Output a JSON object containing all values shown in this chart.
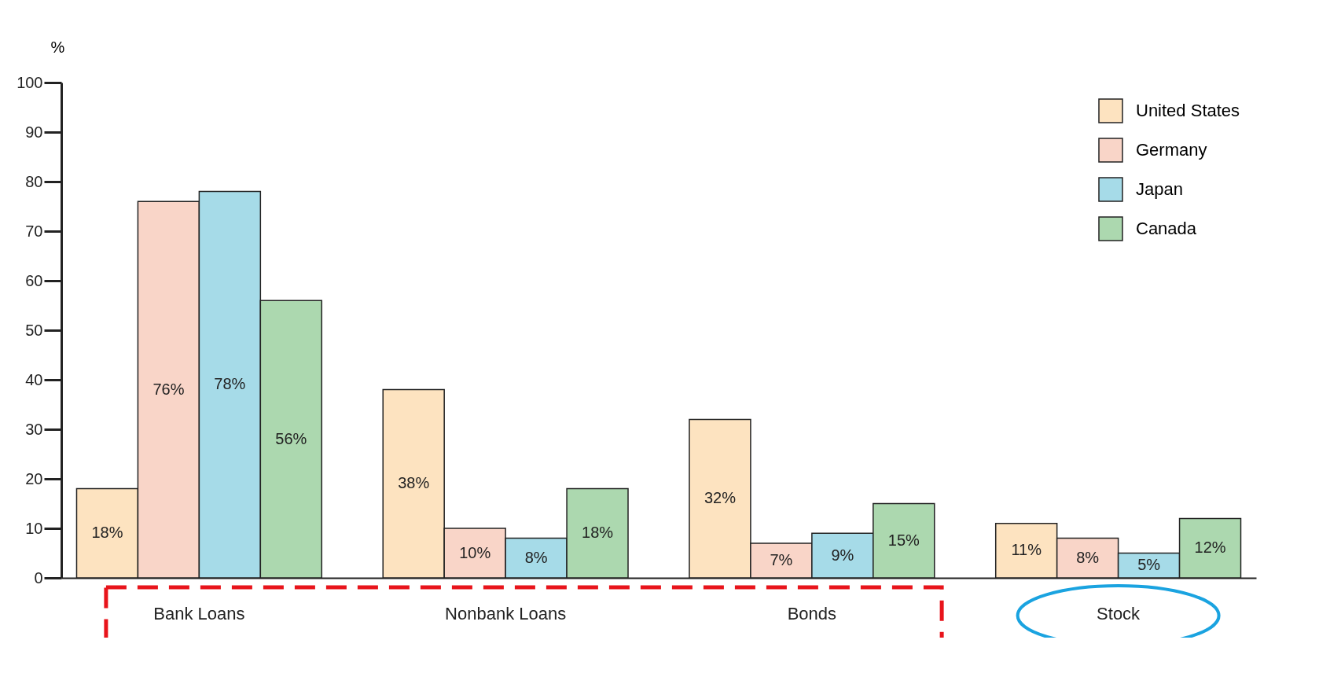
{
  "chart_data": {
    "type": "bar",
    "ylabel": "%",
    "categories": [
      "Bank Loans",
      "Nonbank Loans",
      "Bonds",
      "Stock"
    ],
    "series": [
      {
        "name": "United States",
        "color": "#fde3c0",
        "values": [
          18,
          38,
          32,
          11
        ],
        "value_labels": [
          "18%",
          "38%",
          "32%",
          "11%"
        ]
      },
      {
        "name": "Germany",
        "color": "#f9d5c8",
        "values": [
          76,
          10,
          7,
          8
        ],
        "value_labels": [
          "76%",
          "10%",
          "7%",
          "8%"
        ]
      },
      {
        "name": "Japan",
        "color": "#a6dbe8",
        "values": [
          78,
          8,
          9,
          5
        ],
        "value_labels": [
          "78%",
          "8%",
          "9%",
          "5%"
        ]
      },
      {
        "name": "Canada",
        "color": "#acd8af",
        "values": [
          56,
          18,
          15,
          12
        ],
        "value_labels": [
          "56%",
          "18%",
          "15%",
          "12%"
        ]
      }
    ],
    "ylim": [
      0,
      100
    ],
    "yticks": [
      0,
      10,
      20,
      30,
      40,
      50,
      60,
      70,
      80,
      90,
      100
    ],
    "grid": false,
    "legend": "top right"
  }
}
